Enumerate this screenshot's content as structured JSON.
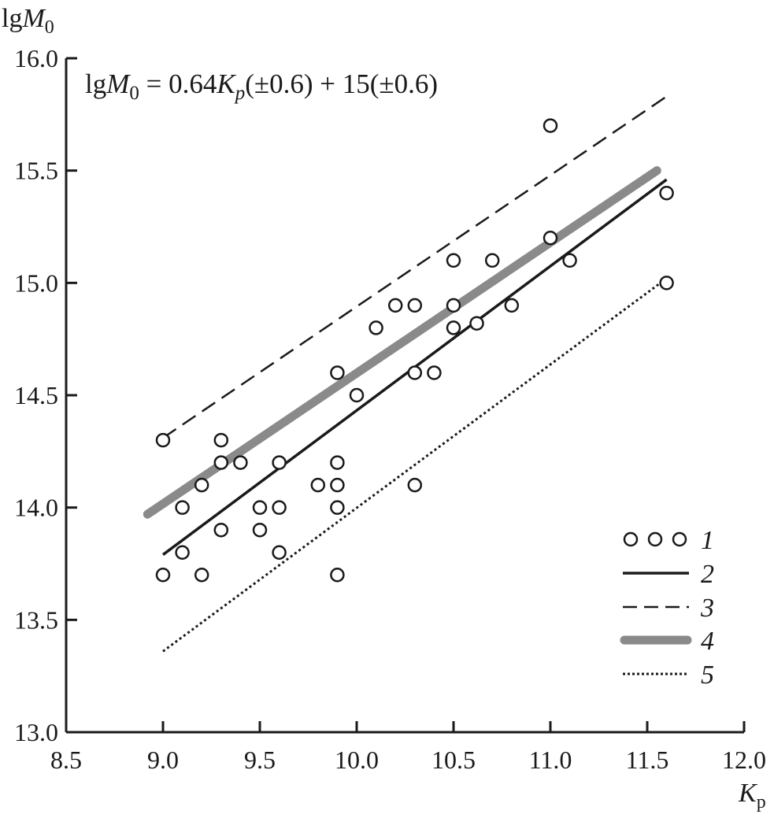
{
  "chart_data": {
    "type": "scatter",
    "title": "",
    "equation": {
      "lhs_prefix": "lg",
      "lhs_var": "M",
      "lhs_sub": "0",
      "eq": " = 0.64",
      "coef_var": "K",
      "coef_sub": "p",
      "rest": "(±0.6) + 15(±0.6)"
    },
    "ylabel": {
      "prefix": "lg",
      "var": "M",
      "sub": "0"
    },
    "xlabel": {
      "var": "K",
      "sub": "p"
    },
    "xlim": [
      8.5,
      12.0
    ],
    "ylim": [
      13.0,
      16.0
    ],
    "xticks": [
      8.5,
      9.0,
      9.5,
      10.0,
      10.5,
      11.0,
      11.5,
      12.0
    ],
    "yticks": [
      13.0,
      13.5,
      14.0,
      14.5,
      15.0,
      15.5,
      16.0
    ],
    "grid": false,
    "legend_position": "bottom-right",
    "colors": {
      "ink": "#1a1a1a",
      "gray": "#8a8a8a"
    },
    "series": [
      {
        "name": "1",
        "kind": "points",
        "points": [
          [
            9.0,
            14.3
          ],
          [
            9.0,
            13.7
          ],
          [
            9.1,
            14.0
          ],
          [
            9.1,
            13.8
          ],
          [
            9.2,
            14.1
          ],
          [
            9.2,
            13.7
          ],
          [
            9.3,
            14.3
          ],
          [
            9.3,
            14.2
          ],
          [
            9.3,
            13.9
          ],
          [
            9.4,
            14.2
          ],
          [
            9.5,
            14.0
          ],
          [
            9.5,
            13.9
          ],
          [
            9.6,
            14.2
          ],
          [
            9.6,
            14.0
          ],
          [
            9.6,
            13.8
          ],
          [
            9.8,
            14.1
          ],
          [
            9.9,
            14.6
          ],
          [
            9.9,
            14.2
          ],
          [
            9.9,
            14.1
          ],
          [
            9.9,
            14.0
          ],
          [
            9.9,
            13.7
          ],
          [
            10.0,
            14.5
          ],
          [
            10.1,
            14.8
          ],
          [
            10.2,
            14.9
          ],
          [
            10.3,
            14.9
          ],
          [
            10.3,
            14.6
          ],
          [
            10.3,
            14.1
          ],
          [
            10.4,
            14.6
          ],
          [
            10.5,
            15.1
          ],
          [
            10.5,
            14.9
          ],
          [
            10.5,
            14.8
          ],
          [
            10.62,
            14.82
          ],
          [
            10.7,
            15.1
          ],
          [
            10.8,
            14.9
          ],
          [
            11.0,
            15.7
          ],
          [
            11.0,
            15.2
          ],
          [
            11.1,
            15.1
          ],
          [
            11.6,
            15.4
          ],
          [
            11.6,
            15.0
          ]
        ]
      },
      {
        "name": "2",
        "kind": "line",
        "style": "solid",
        "points": [
          [
            9.0,
            13.79
          ],
          [
            11.6,
            15.46
          ]
        ]
      },
      {
        "name": "3",
        "kind": "line",
        "style": "dashed",
        "points": [
          [
            9.0,
            14.31
          ],
          [
            11.6,
            15.83
          ]
        ]
      },
      {
        "name": "4",
        "kind": "line",
        "style": "thick-gray",
        "points": [
          [
            8.92,
            13.97
          ],
          [
            11.55,
            15.5
          ]
        ]
      },
      {
        "name": "5",
        "kind": "line",
        "style": "dotted",
        "points": [
          [
            9.0,
            13.36
          ],
          [
            11.6,
            15.02
          ]
        ]
      }
    ]
  }
}
